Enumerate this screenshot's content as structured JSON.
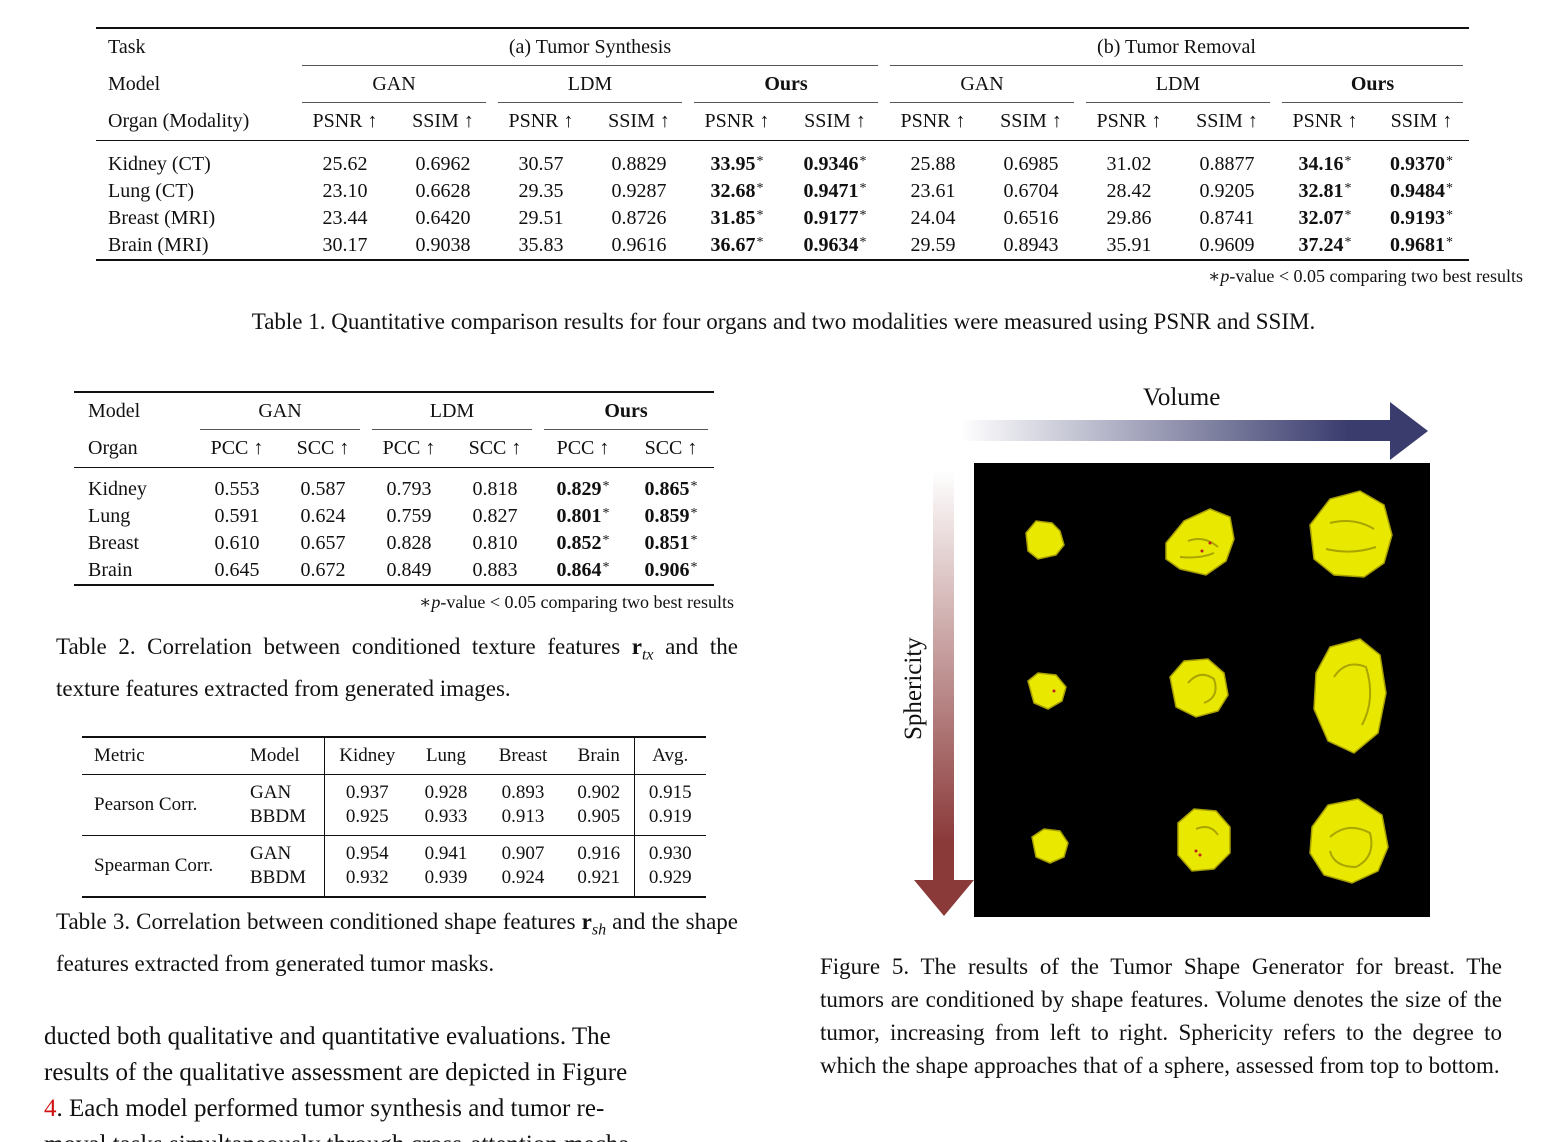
{
  "table1": {
    "task_label": "Task",
    "model_label": "Model",
    "organ_label": "Organ (Modality)",
    "group_a": "(a) Tumor Synthesis",
    "group_b": "(b) Tumor Removal",
    "models": [
      "GAN",
      "LDM",
      "Ours"
    ],
    "metric_psnr": "PSNR ↑",
    "metric_ssim": "SSIM ↑",
    "rows": [
      {
        "organ": "Kidney (CT)",
        "a": [
          "25.62",
          "0.6962",
          "30.57",
          "0.8829",
          "33.95",
          "0.9346"
        ],
        "b": [
          "25.88",
          "0.6985",
          "31.02",
          "0.8877",
          "34.16",
          "0.9370"
        ]
      },
      {
        "organ": "Lung (CT)",
        "a": [
          "23.10",
          "0.6628",
          "29.35",
          "0.9287",
          "32.68",
          "0.9471"
        ],
        "b": [
          "23.61",
          "0.6704",
          "28.42",
          "0.9205",
          "32.81",
          "0.9484"
        ]
      },
      {
        "organ": "Breast (MRI)",
        "a": [
          "23.44",
          "0.6420",
          "29.51",
          "0.8726",
          "31.85",
          "0.9177"
        ],
        "b": [
          "24.04",
          "0.6516",
          "29.86",
          "0.8741",
          "32.07",
          "0.9193"
        ]
      },
      {
        "organ": "Brain (MRI)",
        "a": [
          "30.17",
          "0.9038",
          "35.83",
          "0.9616",
          "36.67",
          "0.9634"
        ],
        "b": [
          "29.59",
          "0.8943",
          "35.91",
          "0.9609",
          "37.24",
          "0.9681"
        ]
      }
    ],
    "star": "*",
    "note_prefix": "∗",
    "note_p": "p",
    "note_text": "-value < 0.05 comparing two best results",
    "caption": "Table 1. Quantitative comparison results for four organs and two modalities were measured using PSNR and SSIM."
  },
  "table2": {
    "model_label": "Model",
    "organ_label": "Organ",
    "models": [
      "GAN",
      "LDM",
      "Ours"
    ],
    "metric_pcc": "PCC ↑",
    "metric_scc": "SCC ↑",
    "rows": [
      {
        "organ": "Kidney",
        "vals": [
          "0.553",
          "0.587",
          "0.793",
          "0.818",
          "0.829",
          "0.865"
        ]
      },
      {
        "organ": "Lung",
        "vals": [
          "0.591",
          "0.624",
          "0.759",
          "0.827",
          "0.801",
          "0.859"
        ]
      },
      {
        "organ": "Breast",
        "vals": [
          "0.610",
          "0.657",
          "0.828",
          "0.810",
          "0.852",
          "0.851"
        ]
      },
      {
        "organ": "Brain",
        "vals": [
          "0.645",
          "0.672",
          "0.849",
          "0.883",
          "0.864",
          "0.906"
        ]
      }
    ],
    "note_text": "-value < 0.05 comparing two best results",
    "caption_pre": "Table 2.  Correlation between conditioned texture features ",
    "caption_bold": "r",
    "caption_sub": "tx",
    "caption_post": " and the texture features extracted from generated images."
  },
  "table3": {
    "headers": [
      "Metric",
      "Model",
      "Kidney",
      "Lung",
      "Breast",
      "Brain",
      "Avg."
    ],
    "groups": [
      {
        "metric": "Pearson Corr.",
        "rows": [
          {
            "model": "GAN",
            "vals": [
              "0.937",
              "0.928",
              "0.893",
              "0.902",
              "0.915"
            ]
          },
          {
            "model": "BBDM",
            "vals": [
              "0.925",
              "0.933",
              "0.913",
              "0.905",
              "0.919"
            ]
          }
        ]
      },
      {
        "metric": "Spearman Corr.",
        "rows": [
          {
            "model": "GAN",
            "vals": [
              "0.954",
              "0.941",
              "0.907",
              "0.916",
              "0.930"
            ]
          },
          {
            "model": "BBDM",
            "vals": [
              "0.932",
              "0.939",
              "0.924",
              "0.921",
              "0.929"
            ]
          }
        ]
      }
    ],
    "caption_pre": "Table 3.  Correlation between conditioned shape features ",
    "caption_bold": "r",
    "caption_sub": "sh",
    "caption_post": " and the shape features extracted from generated tumor masks."
  },
  "figure5": {
    "x_axis_label": "Volume",
    "y_axis_label": "Sphericity",
    "caption": "Figure 5. The results of the Tumor Shape Generator for breast. The tumors are conditioned by shape features. Volume denotes the size of the tumor, increasing from left to right. Sphericity refers to the degree to which the shape approaches that of a sphere, assessed from top to bottom.",
    "colors": {
      "volume_arrow": "#3a3c6e",
      "sphericity_arrow": "#8b3a3a",
      "tumor": "#e8e800",
      "panel": "#000000"
    }
  },
  "body_text": {
    "line1": "ducted both qualitative and quantitative evaluations.  The",
    "line2": "results of the qualitative assessment are depicted in Figure",
    "line3_ref": "4",
    "line3_rest": ".  Each model performed tumor synthesis and tumor re-",
    "line4": "moval tasks simultaneously through cross-attention mecha-"
  }
}
